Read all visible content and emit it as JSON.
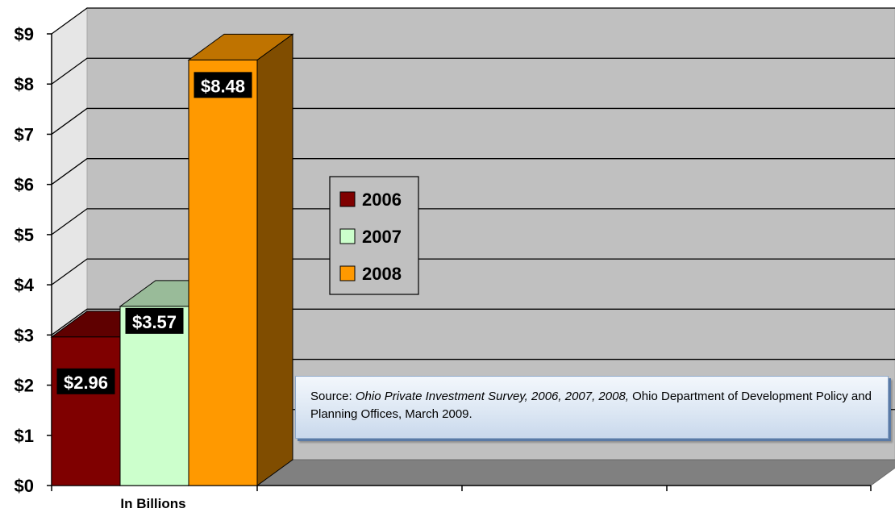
{
  "chart_data": {
    "type": "bar",
    "categories": [
      "In Billions"
    ],
    "series": [
      {
        "name": "2006",
        "values": [
          2.96
        ],
        "label": "$2.96",
        "color": "#7f0000"
      },
      {
        "name": "2007",
        "values": [
          3.57
        ],
        "label": "$3.57",
        "color": "#ccffcc"
      },
      {
        "name": "2008",
        "values": [
          8.48
        ],
        "label": "$8.48",
        "color": "#ff9900"
      }
    ],
    "xlabel": "In Billions",
    "ylabel": "",
    "ylim": [
      0,
      9
    ],
    "yticks": [
      "$0",
      "$1",
      "$2",
      "$3",
      "$4",
      "$5",
      "$6",
      "$7",
      "$8",
      "$9"
    ],
    "grid": true,
    "legend_position": "center",
    "style": "3d-column",
    "wall_color": "#c0c0c0",
    "floor_color": "#808080"
  },
  "source_note": {
    "prefix": "Source: ",
    "title": "Ohio Private Investment Survey, 2006, 2007, 2008,",
    "suffix": " Ohio Department of Development Policy and Planning Offices, March 2009."
  }
}
